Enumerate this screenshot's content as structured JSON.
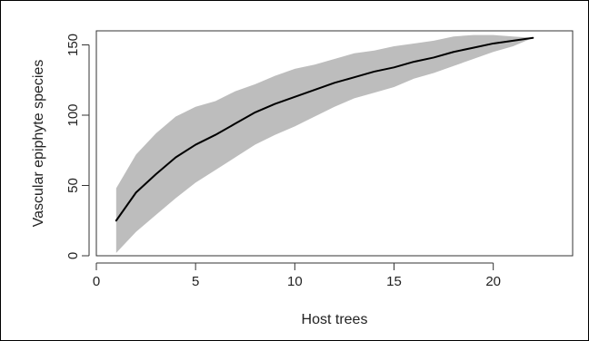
{
  "chart_data": {
    "type": "line",
    "title": "",
    "xlabel": "Host trees",
    "ylabel": "Vascular epiphyte species",
    "xlim": [
      0,
      24
    ],
    "ylim": [
      0,
      160
    ],
    "x_ticks": [
      0,
      5,
      10,
      15,
      20
    ],
    "y_ticks": [
      0,
      50,
      100,
      150
    ],
    "grid": false,
    "legend": "none",
    "series": [
      {
        "x": [
          1,
          2,
          3,
          4,
          5,
          6,
          7,
          8,
          9,
          10,
          11,
          12,
          13,
          14,
          15,
          16,
          17,
          18,
          19,
          20,
          21,
          22
        ],
        "y": [
          25,
          45,
          58,
          70,
          79,
          86,
          94,
          102,
          108,
          113,
          118,
          123,
          127,
          131,
          134,
          138,
          141,
          145,
          148,
          151,
          153,
          155
        ],
        "lower": [
          2,
          17,
          29,
          41,
          52,
          61,
          70,
          79,
          86,
          92,
          99,
          106,
          112,
          116,
          120,
          126,
          130,
          135,
          140,
          145,
          149,
          155
        ],
        "upper": [
          48,
          72,
          87,
          99,
          106,
          110,
          117,
          122,
          128,
          133,
          136,
          140,
          144,
          146,
          149,
          151,
          153,
          156,
          157,
          157,
          156,
          155
        ]
      }
    ],
    "colors": {
      "line": "#000000",
      "band": "#bdbdbd",
      "axis": "#333333"
    }
  }
}
